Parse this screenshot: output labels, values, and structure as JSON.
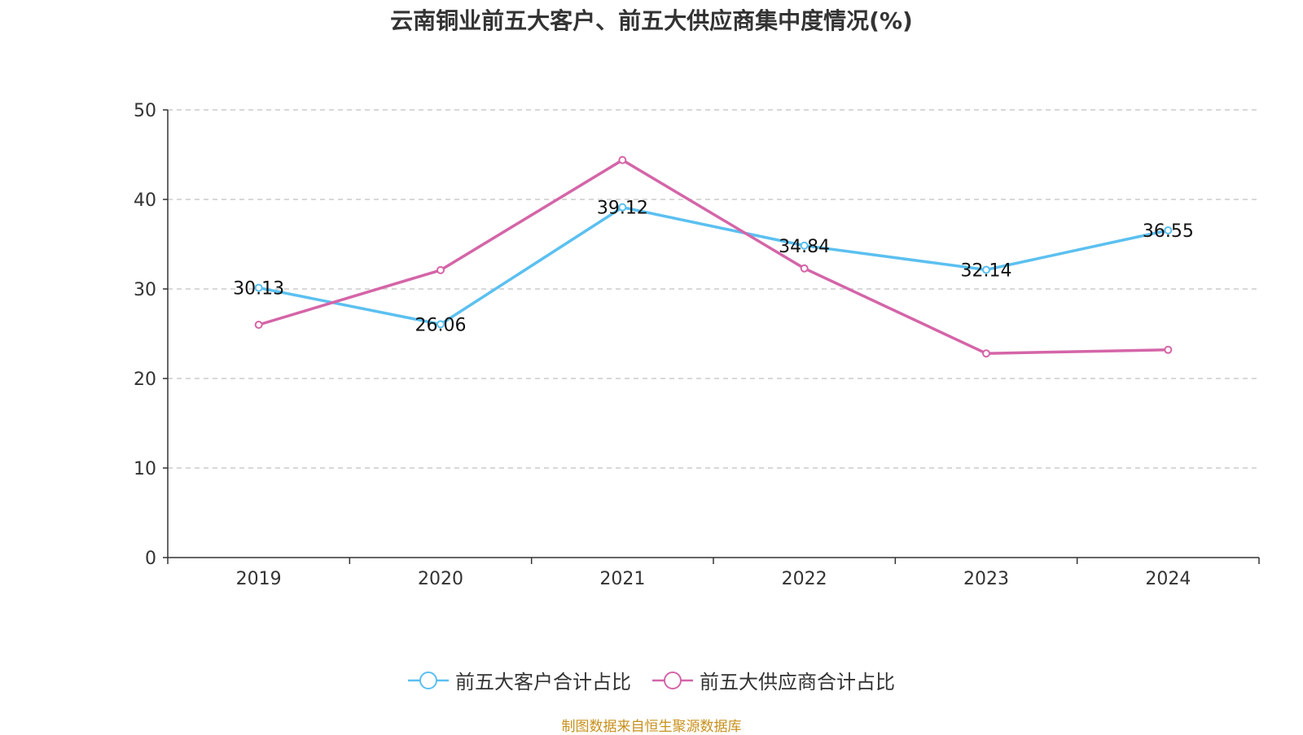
{
  "chart_data": {
    "type": "line",
    "title": "云南铜业前五大客户、前五大供应商集中度情况(%)",
    "categories": [
      "2019",
      "2020",
      "2021",
      "2022",
      "2023",
      "2024"
    ],
    "series": [
      {
        "name": "前五大客户合计占比",
        "color": "#5bc0f0",
        "values": [
          30.13,
          26.06,
          39.12,
          34.84,
          32.14,
          36.55
        ],
        "show_labels": true
      },
      {
        "name": "前五大供应商合计占比",
        "color": "#d465a8",
        "values": [
          26.0,
          32.1,
          44.4,
          32.3,
          22.8,
          23.2
        ],
        "show_labels": false
      }
    ],
    "ylim": [
      0,
      50
    ],
    "yticks": [
      "0",
      "10",
      "20",
      "30",
      "40",
      "50"
    ],
    "grid": true,
    "legend_position": "bottom"
  },
  "footer": {
    "source": "制图数据来自恒生聚源数据库"
  }
}
